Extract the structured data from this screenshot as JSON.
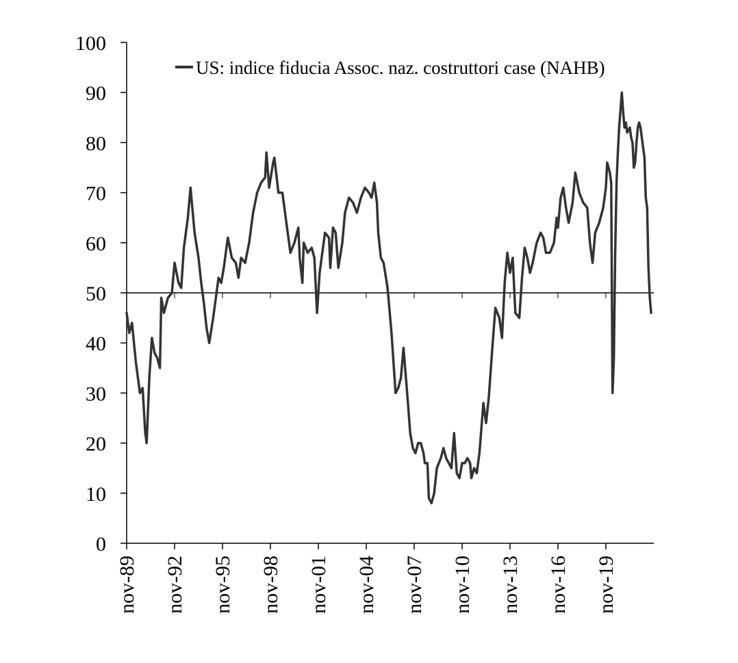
{
  "chart_data": {
    "type": "line",
    "title": "",
    "xlabel": "",
    "ylabel": "",
    "ylim": [
      0,
      100
    ],
    "y_ticks": [
      0,
      10,
      20,
      30,
      40,
      50,
      60,
      70,
      80,
      90,
      100
    ],
    "x_range": [
      "1989-11",
      "2022-11"
    ],
    "x_ticks": [
      {
        "date": "1989-11",
        "label": "nov-89"
      },
      {
        "date": "1992-11",
        "label": "nov-92"
      },
      {
        "date": "1995-11",
        "label": "nov-95"
      },
      {
        "date": "1998-11",
        "label": "nov-98"
      },
      {
        "date": "2001-11",
        "label": "nov-01"
      },
      {
        "date": "2004-11",
        "label": "nov-04"
      },
      {
        "date": "2007-11",
        "label": "nov-07"
      },
      {
        "date": "2010-11",
        "label": "nov-10"
      },
      {
        "date": "2013-11",
        "label": "nov-13"
      },
      {
        "date": "2016-11",
        "label": "nov-16"
      },
      {
        "date": "2019-11",
        "label": "nov-19"
      }
    ],
    "reference_line": 50,
    "grid": false,
    "legend_position": "top",
    "series": [
      {
        "name": "US: indice fiducia Assoc. naz. costruttori case (NAHB)",
        "color": "#333333",
        "points": [
          [
            "1989-11",
            46
          ],
          [
            "1990-01",
            42
          ],
          [
            "1990-03",
            44
          ],
          [
            "1990-06",
            36
          ],
          [
            "1990-09",
            30
          ],
          [
            "1990-11",
            31
          ],
          [
            "1991-01",
            22
          ],
          [
            "1991-02",
            20
          ],
          [
            "1991-04",
            33
          ],
          [
            "1991-06",
            41
          ],
          [
            "1991-08",
            38
          ],
          [
            "1991-10",
            37
          ],
          [
            "1991-12",
            35
          ],
          [
            "1992-01",
            49
          ],
          [
            "1992-03",
            46
          ],
          [
            "1992-06",
            49
          ],
          [
            "1992-09",
            50
          ],
          [
            "1992-11",
            56
          ],
          [
            "1993-02",
            52
          ],
          [
            "1993-04",
            51
          ],
          [
            "1993-06",
            59
          ],
          [
            "1993-09",
            65
          ],
          [
            "1993-11",
            71
          ],
          [
            "1994-02",
            62
          ],
          [
            "1994-05",
            57
          ],
          [
            "1994-07",
            52
          ],
          [
            "1994-09",
            48
          ],
          [
            "1994-11",
            43
          ],
          [
            "1995-01",
            40
          ],
          [
            "1995-04",
            45
          ],
          [
            "1995-06",
            49
          ],
          [
            "1995-08",
            53
          ],
          [
            "1995-10",
            52
          ],
          [
            "1995-12",
            55
          ],
          [
            "1996-02",
            59
          ],
          [
            "1996-03",
            61
          ],
          [
            "1996-06",
            57
          ],
          [
            "1996-09",
            56
          ],
          [
            "1996-11",
            53
          ],
          [
            "1997-01",
            57
          ],
          [
            "1997-04",
            56
          ],
          [
            "1997-07",
            60
          ],
          [
            "1997-10",
            66
          ],
          [
            "1998-01",
            70
          ],
          [
            "1998-04",
            72
          ],
          [
            "1998-07",
            73
          ],
          [
            "1998-08",
            78
          ],
          [
            "1998-10",
            71
          ],
          [
            "1999-01",
            76
          ],
          [
            "1999-02",
            77
          ],
          [
            "1999-05",
            70
          ],
          [
            "1999-08",
            70
          ],
          [
            "1999-11",
            64
          ],
          [
            "2000-02",
            58
          ],
          [
            "2000-05",
            60
          ],
          [
            "2000-08",
            63
          ],
          [
            "2000-09",
            57
          ],
          [
            "2000-11",
            52
          ],
          [
            "2000-12",
            60
          ],
          [
            "2001-03",
            58
          ],
          [
            "2001-06",
            59
          ],
          [
            "2001-08",
            57
          ],
          [
            "2001-10",
            46
          ],
          [
            "2001-12",
            54
          ],
          [
            "2002-02",
            58
          ],
          [
            "2002-04",
            62
          ],
          [
            "2002-07",
            61
          ],
          [
            "2002-08",
            55
          ],
          [
            "2002-10",
            63
          ],
          [
            "2002-12",
            62
          ],
          [
            "2003-02",
            55
          ],
          [
            "2003-05",
            60
          ],
          [
            "2003-07",
            66
          ],
          [
            "2003-10",
            69
          ],
          [
            "2004-01",
            68
          ],
          [
            "2004-04",
            66
          ],
          [
            "2004-07",
            69
          ],
          [
            "2004-10",
            71
          ],
          [
            "2005-01",
            70
          ],
          [
            "2005-03",
            69
          ],
          [
            "2005-05",
            72
          ],
          [
            "2005-07",
            68
          ],
          [
            "2005-08",
            62
          ],
          [
            "2005-10",
            57
          ],
          [
            "2005-12",
            56
          ],
          [
            "2006-03",
            51
          ],
          [
            "2006-06",
            42
          ],
          [
            "2006-09",
            30
          ],
          [
            "2006-11",
            31
          ],
          [
            "2007-01",
            33
          ],
          [
            "2007-03",
            39
          ],
          [
            "2007-06",
            29
          ],
          [
            "2007-08",
            22
          ],
          [
            "2007-10",
            19
          ],
          [
            "2007-12",
            18
          ],
          [
            "2008-02",
            20
          ],
          [
            "2008-04",
            20
          ],
          [
            "2008-06",
            18
          ],
          [
            "2008-07",
            16
          ],
          [
            "2008-09",
            16
          ],
          [
            "2008-10",
            9
          ],
          [
            "2008-12",
            8
          ],
          [
            "2009-02",
            10
          ],
          [
            "2009-04",
            15
          ],
          [
            "2009-07",
            17
          ],
          [
            "2009-09",
            19
          ],
          [
            "2009-11",
            17
          ],
          [
            "2010-01",
            16
          ],
          [
            "2010-03",
            15
          ],
          [
            "2010-05",
            22
          ],
          [
            "2010-07",
            14
          ],
          [
            "2010-09",
            13
          ],
          [
            "2010-11",
            16
          ],
          [
            "2011-01",
            16
          ],
          [
            "2011-03",
            17
          ],
          [
            "2011-05",
            16
          ],
          [
            "2011-06",
            13
          ],
          [
            "2011-08",
            15
          ],
          [
            "2011-10",
            14
          ],
          [
            "2011-12",
            18
          ],
          [
            "2012-03",
            28
          ],
          [
            "2012-05",
            24
          ],
          [
            "2012-07",
            29
          ],
          [
            "2012-10",
            40
          ],
          [
            "2012-12",
            47
          ],
          [
            "2013-03",
            45
          ],
          [
            "2013-05",
            41
          ],
          [
            "2013-07",
            52
          ],
          [
            "2013-09",
            58
          ],
          [
            "2013-11",
            54
          ],
          [
            "2014-01",
            57
          ],
          [
            "2014-03",
            46
          ],
          [
            "2014-06",
            45
          ],
          [
            "2014-08",
            53
          ],
          [
            "2014-10",
            59
          ],
          [
            "2014-12",
            57
          ],
          [
            "2015-02",
            54
          ],
          [
            "2015-04",
            56
          ],
          [
            "2015-07",
            60
          ],
          [
            "2015-10",
            62
          ],
          [
            "2015-12",
            61
          ],
          [
            "2016-02",
            58
          ],
          [
            "2016-05",
            58
          ],
          [
            "2016-08",
            60
          ],
          [
            "2016-10",
            65
          ],
          [
            "2016-11",
            63
          ],
          [
            "2017-01",
            69
          ],
          [
            "2017-03",
            71
          ],
          [
            "2017-05",
            67
          ],
          [
            "2017-07",
            64
          ],
          [
            "2017-10",
            68
          ],
          [
            "2017-12",
            74
          ],
          [
            "2018-03",
            70
          ],
          [
            "2018-06",
            68
          ],
          [
            "2018-09",
            67
          ],
          [
            "2018-11",
            60
          ],
          [
            "2019-01",
            56
          ],
          [
            "2019-03",
            62
          ],
          [
            "2019-06",
            64
          ],
          [
            "2019-09",
            67
          ],
          [
            "2019-11",
            71
          ],
          [
            "2019-12",
            76
          ],
          [
            "2020-02",
            74
          ],
          [
            "2020-03",
            72
          ],
          [
            "2020-04",
            30
          ],
          [
            "2020-05",
            37
          ],
          [
            "2020-06",
            58
          ],
          [
            "2020-07",
            72
          ],
          [
            "2020-08",
            78
          ],
          [
            "2020-09",
            83
          ],
          [
            "2020-11",
            90
          ],
          [
            "2020-12",
            86
          ],
          [
            "2021-01",
            83
          ],
          [
            "2021-02",
            84
          ],
          [
            "2021-03",
            82
          ],
          [
            "2021-05",
            83
          ],
          [
            "2021-06",
            81
          ],
          [
            "2021-07",
            80
          ],
          [
            "2021-08",
            75
          ],
          [
            "2021-09",
            76
          ],
          [
            "2021-10",
            80
          ],
          [
            "2021-11",
            83
          ],
          [
            "2021-12",
            84
          ],
          [
            "2022-01",
            83
          ],
          [
            "2022-02",
            81
          ],
          [
            "2022-03",
            79
          ],
          [
            "2022-04",
            77
          ],
          [
            "2022-05",
            69
          ],
          [
            "2022-06",
            67
          ],
          [
            "2022-07",
            55
          ],
          [
            "2022-08",
            49
          ],
          [
            "2022-09",
            46
          ]
        ]
      }
    ]
  }
}
